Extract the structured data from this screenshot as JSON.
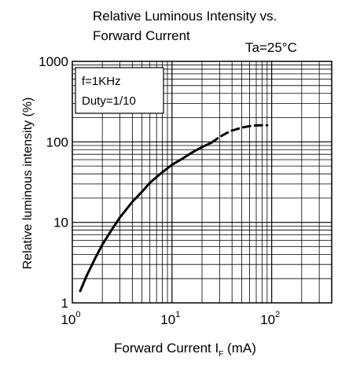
{
  "chart_data": {
    "type": "line",
    "title_lines": [
      "Relative Luminous Intensity vs.",
      "Forward Current"
    ],
    "condition": "Ta=25°C",
    "legend_lines": [
      "f=1KHz",
      "Duty=1/10"
    ],
    "ylabel": "Relative luminous intensity (%)",
    "xlabel": {
      "text": "Forward Current  I",
      "subscript": "F",
      "unit": " (mA)"
    },
    "x_scale": "log",
    "y_scale": "log",
    "xlim": [
      1,
      400
    ],
    "ylim": [
      1,
      1000
    ],
    "grid": true,
    "x_ticks": [
      {
        "base": "10",
        "exp": "0",
        "value": 1
      },
      {
        "base": "10",
        "exp": "1",
        "value": 10
      },
      {
        "base": "10",
        "exp": "2",
        "value": 100
      }
    ],
    "y_ticks": [
      {
        "label": "1",
        "value": 1
      },
      {
        "label": "10",
        "value": 10
      },
      {
        "label": "100",
        "value": 100
      },
      {
        "label": "1000",
        "value": 1000
      }
    ],
    "series": [
      {
        "style": "solid",
        "x": [
          1.2,
          1.4,
          1.7,
          2,
          2.5,
          3,
          4,
          5,
          6,
          8,
          10,
          13,
          16,
          20,
          25
        ],
        "y": [
          1.4,
          2.2,
          3.6,
          5.3,
          8.2,
          11.5,
          18,
          24,
          31,
          42,
          52,
          63,
          74,
          86,
          98
        ]
      },
      {
        "style": "dashed",
        "x": [
          25,
          30,
          35,
          40,
          50,
          60,
          70,
          80,
          90
        ],
        "y": [
          98,
          115,
          128,
          138,
          150,
          157,
          160,
          161,
          161
        ]
      }
    ]
  }
}
